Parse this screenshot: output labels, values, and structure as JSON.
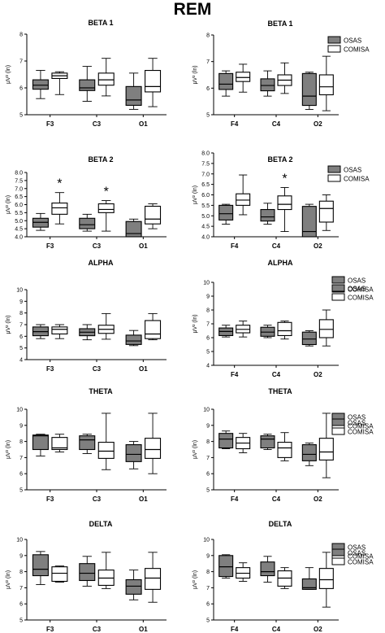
{
  "figure_title": "REM",
  "colors": {
    "osas": "#7f7f7f",
    "comisa": "#ffffff",
    "axis": "#000000"
  },
  "chart_data": [
    {
      "type": "box",
      "title": "BETA 1",
      "ylabel": "μV² (ln)",
      "ylim": [
        5,
        8
      ],
      "yticks": [
        "5",
        "6",
        "7",
        "8"
      ],
      "categories": [
        "F3",
        "C3",
        "O1"
      ],
      "legend": null,
      "markers": [],
      "series": [
        {
          "name": "OSAS",
          "boxes": [
            [
              5.6,
              5.95,
              6.1,
              6.3,
              6.65
            ],
            [
              5.5,
              5.9,
              6.0,
              6.3,
              6.8
            ],
            [
              5.2,
              5.35,
              5.55,
              6.05,
              6.55
            ]
          ]
        },
        {
          "name": "COMISA",
          "boxes": [
            [
              5.75,
              6.35,
              6.45,
              6.55,
              6.6
            ],
            [
              5.7,
              6.1,
              6.3,
              6.55,
              7.1
            ],
            [
              5.3,
              5.85,
              6.05,
              6.65,
              7.1
            ]
          ]
        }
      ]
    },
    {
      "type": "box",
      "title": "BETA 1",
      "ylabel": "μV² (ln)",
      "ylim": [
        5,
        8
      ],
      "yticks": [
        "5",
        "6",
        "7",
        "8"
      ],
      "categories": [
        "F4",
        "C4",
        "O2"
      ],
      "legend": [
        "OSAS",
        "COMISA"
      ],
      "markers": [],
      "series": [
        {
          "name": "OSAS",
          "boxes": [
            [
              5.7,
              5.95,
              6.15,
              6.55,
              6.65
            ],
            [
              5.7,
              5.9,
              6.1,
              6.35,
              6.65
            ],
            [
              5.2,
              5.35,
              5.7,
              6.55,
              6.6
            ]
          ]
        },
        {
          "name": "COMISA",
          "boxes": [
            [
              5.85,
              6.25,
              6.4,
              6.6,
              6.9
            ],
            [
              5.8,
              6.1,
              6.3,
              6.5,
              6.95
            ],
            [
              5.15,
              5.75,
              6.05,
              6.5,
              7.2
            ]
          ]
        }
      ]
    },
    {
      "type": "box",
      "title": "BETA 2",
      "ylabel": "μV² (ln)",
      "ylim": [
        4,
        8
      ],
      "yticks": [
        "4.0",
        "4.5",
        "5.0",
        "5.5",
        "6.0",
        "6.5",
        "7.0",
        "7.5",
        "8.0"
      ],
      "categories": [
        "F3",
        "C3",
        "O1"
      ],
      "legend": null,
      "markers": [
        {
          "group": 0,
          "text": "*"
        },
        {
          "group": 1,
          "text": "*"
        }
      ],
      "series": [
        {
          "name": "OSAS",
          "boxes": [
            [
              4.4,
              4.6,
              4.9,
              5.15,
              5.45
            ],
            [
              4.35,
              4.5,
              4.75,
              5.15,
              5.4
            ],
            [
              4.0,
              4.0,
              4.2,
              4.95,
              5.1
            ]
          ]
        },
        {
          "name": "COMISA",
          "boxes": [
            [
              4.8,
              5.4,
              5.8,
              6.1,
              6.75
            ],
            [
              4.35,
              5.5,
              5.7,
              6.05,
              6.25
            ],
            [
              4.5,
              4.8,
              5.1,
              5.9,
              6.05
            ]
          ]
        }
      ]
    },
    {
      "type": "box",
      "title": "BETA 2",
      "ylabel": "μV² (ln)",
      "ylim": [
        4,
        8
      ],
      "yticks": [
        "4.0",
        "4.5",
        "5.0",
        "5.5",
        "6.0",
        "6.5",
        "7.0",
        "7.5",
        "8.0"
      ],
      "categories": [
        "F4",
        "C4",
        "O2"
      ],
      "legend": [
        "OSAS",
        "COMISA"
      ],
      "markers": [
        {
          "group": 1,
          "text": "*"
        }
      ],
      "series": [
        {
          "name": "OSAS",
          "boxes": [
            [
              4.6,
              4.8,
              5.1,
              5.5,
              5.55
            ],
            [
              4.6,
              4.75,
              4.95,
              5.3,
              5.6
            ],
            [
              4.0,
              4.0,
              4.25,
              5.45,
              5.55
            ]
          ]
        },
        {
          "name": "COMISA",
          "boxes": [
            [
              5.05,
              5.5,
              5.75,
              6.05,
              6.95
            ],
            [
              4.25,
              5.3,
              5.55,
              5.95,
              6.35
            ],
            [
              4.3,
              4.7,
              5.35,
              5.7,
              6.0
            ]
          ]
        }
      ]
    },
    {
      "type": "box",
      "title": "ALPHA",
      "ylabel": "μV² (ln)",
      "ylim": [
        4,
        10
      ],
      "yticks": [
        "4",
        "5",
        "6",
        "7",
        "8",
        "9",
        "10"
      ],
      "categories": [
        "F3",
        "C3",
        "O1"
      ],
      "legend": [
        "OSAS",
        "COMISA"
      ],
      "markers": [],
      "series": [
        {
          "name": "OSAS",
          "boxes": [
            [
              5.8,
              6.05,
              6.4,
              6.8,
              7.0
            ],
            [
              5.7,
              6.05,
              6.35,
              6.65,
              7.0
            ],
            [
              5.2,
              5.3,
              5.6,
              6.1,
              6.5
            ]
          ]
        },
        {
          "name": "COMISA",
          "boxes": [
            [
              5.8,
              6.2,
              6.6,
              6.8,
              7.0
            ],
            [
              5.75,
              6.25,
              6.6,
              6.95,
              7.95
            ],
            [
              5.7,
              5.8,
              6.2,
              7.35,
              7.95
            ]
          ]
        }
      ]
    },
    {
      "type": "box",
      "title": "ALPHA",
      "ylabel": "μV² (ln)",
      "ylim": [
        4,
        10
      ],
      "yticks": [
        "4",
        "5",
        "6",
        "7",
        "8",
        "9",
        "10"
      ],
      "categories": [
        "F4",
        "C4",
        "O2"
      ],
      "legend": [
        "OSAS",
        "COMISA"
      ],
      "markers": [],
      "series": [
        {
          "name": "OSAS",
          "boxes": [
            [
              6.05,
              6.15,
              6.45,
              6.7,
              6.9
            ],
            [
              6.0,
              6.1,
              6.4,
              6.75,
              6.9
            ],
            [
              5.4,
              5.5,
              5.9,
              6.4,
              6.5
            ]
          ]
        },
        {
          "name": "COMISA",
          "boxes": [
            [
              6.05,
              6.35,
              6.6,
              6.9,
              7.2
            ],
            [
              5.9,
              6.15,
              6.5,
              7.1,
              7.2
            ],
            [
              5.4,
              6.0,
              6.6,
              7.3,
              8.0
            ]
          ]
        }
      ]
    },
    {
      "type": "box",
      "title": "THETA",
      "ylabel": "μV² (ln)",
      "ylim": [
        5,
        10
      ],
      "yticks": [
        "5",
        "6",
        "7",
        "8",
        "9",
        "10"
      ],
      "categories": [
        "F3",
        "C3",
        "O1"
      ],
      "legend": [
        "OSAS",
        "COMISA"
      ],
      "markers": [],
      "series": [
        {
          "name": "OSAS",
          "boxes": [
            [
              7.1,
              7.5,
              8.35,
              8.4,
              8.45
            ],
            [
              7.25,
              7.5,
              8.1,
              8.35,
              8.45
            ],
            [
              6.3,
              6.75,
              7.2,
              7.8,
              8.0
            ]
          ]
        },
        {
          "name": "COMISA",
          "boxes": [
            [
              7.35,
              7.5,
              7.6,
              8.25,
              8.45
            ],
            [
              6.25,
              6.95,
              7.4,
              7.95,
              9.75
            ],
            [
              6.0,
              6.95,
              7.5,
              8.2,
              9.75
            ]
          ]
        }
      ]
    },
    {
      "type": "box",
      "title": "THETA",
      "ylabel": "μV² (ln)",
      "ylim": [
        5,
        10
      ],
      "yticks": [
        "5",
        "6",
        "7",
        "8",
        "9",
        "10"
      ],
      "categories": [
        "F4",
        "C4",
        "O2"
      ],
      "legend": [
        "OSAS",
        "COMISA"
      ],
      "markers": [],
      "series": [
        {
          "name": "OSAS",
          "boxes": [
            [
              7.55,
              7.6,
              8.15,
              8.5,
              8.65
            ],
            [
              7.5,
              7.6,
              8.15,
              8.35,
              8.45
            ],
            [
              6.5,
              6.8,
              7.2,
              7.8,
              7.9
            ]
          ]
        },
        {
          "name": "COMISA",
          "boxes": [
            [
              7.3,
              7.55,
              7.9,
              8.25,
              8.5
            ],
            [
              6.8,
              7.0,
              7.6,
              7.95,
              8.55
            ],
            [
              5.75,
              6.85,
              7.35,
              8.2,
              9.75
            ]
          ]
        }
      ]
    },
    {
      "type": "box",
      "title": "DELTA",
      "ylabel": "μV² (ln)",
      "ylim": [
        5,
        10
      ],
      "yticks": [
        "5",
        "6",
        "7",
        "8",
        "9",
        "10"
      ],
      "categories": [
        "F3",
        "C3",
        "O1"
      ],
      "legend": [
        "OSAS",
        "COMISA"
      ],
      "markers": [],
      "series": [
        {
          "name": "OSAS",
          "boxes": [
            [
              7.2,
              7.75,
              8.15,
              9.05,
              9.25
            ],
            [
              7.1,
              7.45,
              7.9,
              8.5,
              8.95
            ],
            [
              6.25,
              6.6,
              7.1,
              7.5,
              8.1
            ]
          ]
        },
        {
          "name": "COMISA",
          "boxes": [
            [
              7.35,
              7.4,
              7.9,
              8.3,
              8.35
            ],
            [
              6.95,
              7.15,
              7.6,
              8.1,
              9.2
            ],
            [
              6.1,
              6.9,
              7.6,
              8.2,
              9.2
            ]
          ]
        }
      ]
    },
    {
      "type": "box",
      "title": "DELTA",
      "ylabel": "μV² (ln)",
      "ylim": [
        5,
        10
      ],
      "yticks": [
        "5",
        "6",
        "7",
        "8",
        "9",
        "10"
      ],
      "categories": [
        "F4",
        "C4",
        "O2"
      ],
      "legend": [
        "OSAS",
        "COMISA"
      ],
      "markers": [],
      "series": [
        {
          "name": "OSAS",
          "boxes": [
            [
              7.6,
              7.7,
              8.3,
              9.0,
              9.05
            ],
            [
              7.35,
              7.75,
              8.0,
              8.6,
              8.95
            ],
            [
              6.9,
              6.9,
              7.0,
              7.55,
              8.25
            ]
          ]
        },
        {
          "name": "COMISA",
          "boxes": [
            [
              7.4,
              7.6,
              7.9,
              8.25,
              8.55
            ],
            [
              6.95,
              7.1,
              7.6,
              8.05,
              8.25
            ],
            [
              5.8,
              6.95,
              7.5,
              8.2,
              9.2
            ]
          ]
        }
      ]
    }
  ]
}
